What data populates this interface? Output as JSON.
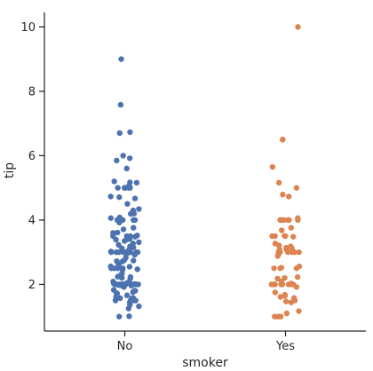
{
  "chart_data": {
    "type": "scatter",
    "subtype": "strip",
    "xlabel": "smoker",
    "ylabel": "tip",
    "categories": [
      "No",
      "Yes"
    ],
    "ylim": [
      0.55,
      10.45
    ],
    "yticks": [
      2,
      4,
      6,
      8,
      10
    ],
    "grid": false,
    "legend": "none",
    "spines": "left-bottom",
    "series": [
      {
        "category": "No",
        "color": "#4c72b0",
        "values": [
          1.01,
          1.0,
          1.25,
          1.32,
          1.36,
          1.44,
          1.5,
          1.5,
          1.5,
          1.5,
          1.56,
          1.57,
          1.58,
          1.61,
          1.66,
          1.71,
          1.73,
          1.76,
          1.8,
          1.8,
          1.83,
          1.92,
          1.96,
          1.97,
          1.98,
          2.0,
          2.0,
          2.0,
          2.0,
          2.0,
          2.0,
          2.0,
          2.0,
          2.0,
          2.0,
          2.0,
          2.0,
          2.0,
          2.0,
          2.0,
          2.0,
          2.0,
          2.0,
          2.0,
          2.0,
          2.01,
          2.02,
          2.03,
          2.05,
          2.09,
          2.18,
          2.2,
          2.23,
          2.24,
          2.31,
          2.34,
          2.45,
          2.47,
          2.5,
          2.5,
          2.5,
          2.5,
          2.55,
          2.56,
          2.6,
          2.64,
          2.71,
          2.72,
          2.74,
          2.75,
          2.83,
          2.92,
          2.98,
          3.0,
          3.0,
          3.0,
          3.0,
          3.0,
          3.0,
          3.0,
          3.0,
          3.0,
          3.0,
          3.0,
          3.0,
          3.0,
          3.02,
          3.06,
          3.07,
          3.12,
          3.15,
          3.18,
          3.23,
          3.27,
          3.31,
          3.35,
          3.39,
          3.4,
          3.41,
          3.48,
          3.5,
          3.5,
          3.5,
          3.52,
          3.6,
          3.61,
          3.71,
          3.76,
          3.92,
          4.0,
          4.0,
          4.0,
          4.0,
          4.0,
          4.06,
          4.08,
          4.19,
          4.2,
          4.3,
          4.34,
          4.5,
          4.67,
          4.71,
          4.73,
          5.0,
          5.0,
          5.0,
          5.0,
          5.0,
          5.0,
          5.07,
          5.16,
          5.17,
          5.2,
          5.6,
          5.85,
          5.92,
          6.0,
          6.7,
          6.73,
          7.58,
          9.0
        ]
      },
      {
        "category": "Yes",
        "color": "#dd8452",
        "values": [
          1.0,
          1.0,
          1.0,
          1.1,
          1.17,
          1.44,
          1.47,
          1.5,
          1.58,
          1.61,
          1.64,
          1.68,
          1.75,
          1.92,
          2.0,
          2.0,
          2.0,
          2.0,
          2.0,
          2.0,
          2.0,
          2.0,
          2.0,
          2.0,
          2.03,
          2.09,
          2.18,
          2.2,
          2.23,
          2.5,
          2.5,
          2.5,
          2.52,
          2.56,
          2.88,
          2.92,
          3.0,
          3.0,
          3.0,
          3.0,
          3.0,
          3.0,
          3.08,
          3.09,
          3.11,
          3.14,
          3.16,
          3.18,
          3.21,
          3.27,
          3.48,
          3.5,
          3.5,
          3.5,
          3.51,
          3.68,
          3.76,
          4.0,
          4.0,
          4.0,
          4.0,
          4.0,
          4.0,
          4.0,
          4.0,
          4.06,
          4.73,
          4.79,
          5.0,
          5.16,
          5.65,
          6.5,
          6.5,
          10.0
        ]
      }
    ]
  }
}
